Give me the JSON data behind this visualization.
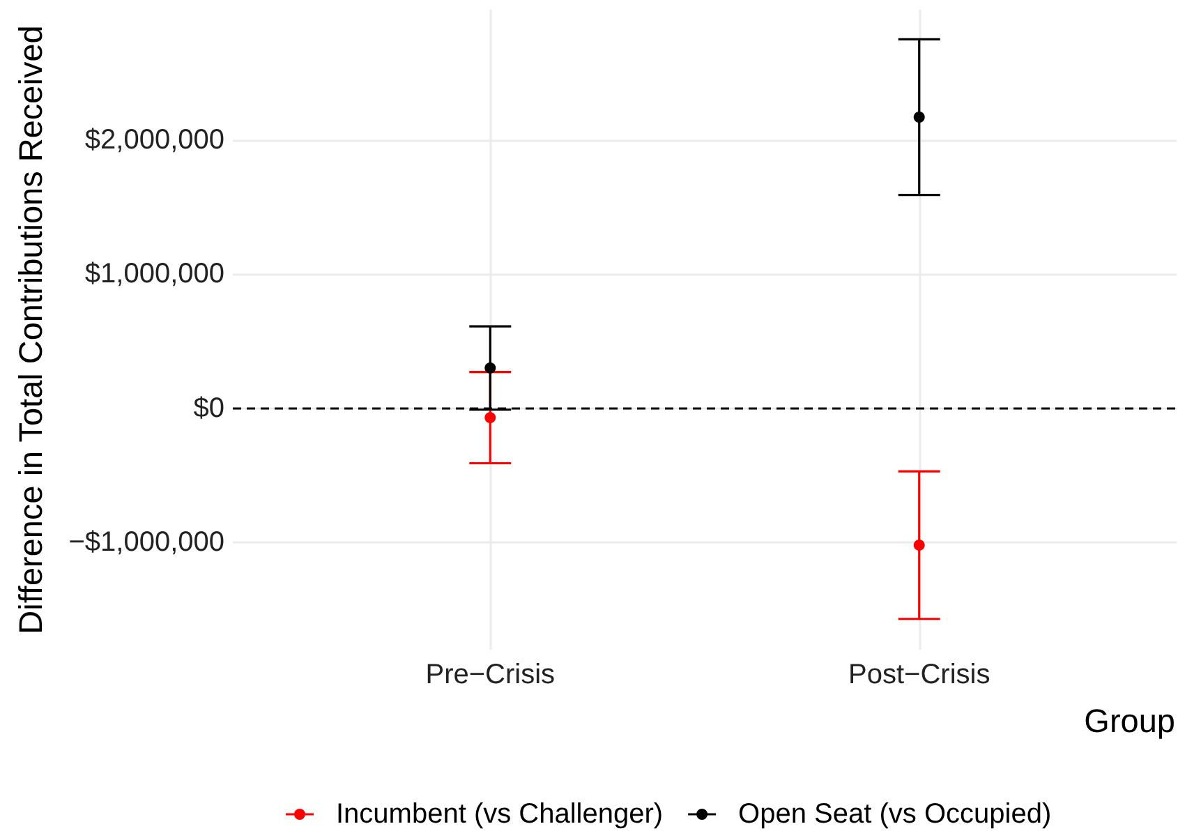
{
  "chart_data": {
    "type": "scatter",
    "xlabel": "Group",
    "ylabel": "Difference in Total Contributions Received",
    "categories": [
      "Pre−Crisis",
      "Post−Crisis"
    ],
    "series": [
      {
        "name": "Incumbent (vs Challenger)",
        "color": "#ff0000",
        "values": [
          -70000,
          -1020000
        ],
        "errors": [
          340000,
          550000
        ]
      },
      {
        "name": "Open Seat (vs Occupied)",
        "color": "#000000",
        "values": [
          300000,
          2170000
        ],
        "errors": [
          310000,
          580000
        ]
      }
    ],
    "ylim": [
      -1800000,
      2970000
    ],
    "yticks": [
      {
        "value": -1000000,
        "label": "−$1,000,000"
      },
      {
        "value": 0,
        "label": "$0"
      },
      {
        "value": 1000000,
        "label": "$1,000,000"
      },
      {
        "value": 2000000,
        "label": "$2,000,000"
      }
    ],
    "ref_lines": [
      {
        "axis": "y",
        "value": 0,
        "color": "#000000",
        "line_style": "dashed"
      }
    ],
    "grid": true,
    "legend": "bottom",
    "marker": "circle"
  }
}
